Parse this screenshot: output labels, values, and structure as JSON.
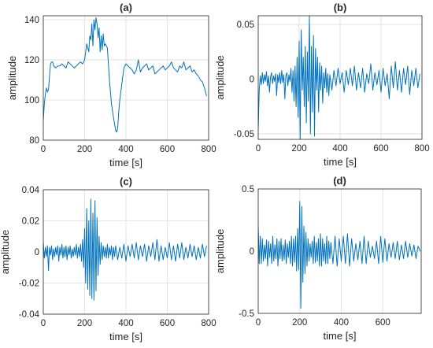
{
  "colors": {
    "series": "#0072bd",
    "axis": "#262626",
    "grid": "#dcdcdc"
  },
  "chart_data": [
    {
      "id": "a",
      "type": "line",
      "title": "(a)",
      "xlabel": "time [s]",
      "ylabel": "amplitude",
      "xlim": [
        0,
        800
      ],
      "ylim": [
        80,
        142
      ],
      "xticks": [
        "0",
        "200",
        "400",
        "600",
        "800"
      ],
      "yticks": [
        "80",
        "100",
        "120",
        "140"
      ],
      "grid": true,
      "series": [
        {
          "x": [
            0,
            5,
            10,
            15,
            20,
            25,
            30,
            35,
            40,
            45,
            50,
            60,
            70,
            80,
            90,
            100,
            110,
            120,
            130,
            140,
            150,
            160,
            170,
            180,
            190,
            200,
            210,
            220,
            225,
            230,
            235,
            240,
            245,
            250,
            255,
            260,
            265,
            270,
            275,
            280,
            285,
            290,
            295,
            300,
            310,
            320,
            330,
            340,
            345,
            350,
            355,
            360,
            365,
            370,
            380,
            390,
            400,
            410,
            420,
            430,
            440,
            450,
            460,
            470,
            480,
            490,
            500,
            510,
            520,
            530,
            540,
            550,
            560,
            570,
            580,
            590,
            600,
            610,
            620,
            630,
            640,
            650,
            660,
            670,
            680,
            690,
            700,
            710,
            720,
            730,
            740,
            750,
            760,
            770,
            780,
            790
          ],
          "y": [
            90,
            98,
            103,
            106,
            104,
            105,
            112,
            118,
            119,
            119,
            117,
            116,
            117,
            117,
            118,
            117,
            116,
            119,
            118,
            117,
            116,
            117,
            118,
            119,
            118,
            120,
            128,
            124,
            132,
            130,
            138,
            127,
            140,
            135,
            141,
            138,
            131,
            136,
            124,
            132,
            125,
            133,
            127,
            128,
            126,
            110,
            98,
            91,
            88,
            85,
            84,
            86,
            94,
            100,
            108,
            116,
            118,
            117,
            116,
            115,
            113,
            115,
            120,
            114,
            116,
            117,
            118,
            115,
            116,
            117,
            113,
            114,
            115,
            116,
            117,
            115,
            116,
            117,
            119,
            116,
            115,
            114,
            117,
            116,
            119,
            115,
            116,
            117,
            114,
            115,
            113,
            112,
            110,
            109,
            106,
            102
          ]
        }
      ]
    },
    {
      "id": "b",
      "type": "line",
      "title": "(b)",
      "xlabel": "time [s]",
      "ylabel": "amplitude",
      "xlim": [
        0,
        800
      ],
      "ylim": [
        -0.055,
        0.058
      ],
      "xticks": [
        "0",
        "200",
        "400",
        "600",
        "800"
      ],
      "yticks": [
        "-0.05",
        "0",
        "0.05"
      ],
      "grid": true,
      "series": [
        {
          "x": [
            0,
            5,
            10,
            15,
            20,
            25,
            30,
            35,
            40,
            45,
            50,
            55,
            60,
            65,
            70,
            75,
            80,
            85,
            90,
            95,
            100,
            105,
            110,
            115,
            120,
            125,
            130,
            135,
            140,
            145,
            150,
            155,
            160,
            165,
            170,
            175,
            180,
            185,
            190,
            195,
            200,
            205,
            210,
            215,
            220,
            225,
            230,
            235,
            240,
            245,
            250,
            255,
            260,
            265,
            270,
            275,
            280,
            285,
            290,
            295,
            300,
            305,
            310,
            315,
            320,
            325,
            330,
            335,
            340,
            345,
            350,
            360,
            370,
            380,
            390,
            400,
            410,
            420,
            430,
            440,
            450,
            460,
            470,
            480,
            490,
            500,
            510,
            520,
            530,
            540,
            550,
            560,
            570,
            580,
            590,
            600,
            610,
            620,
            630,
            640,
            650,
            660,
            670,
            680,
            690,
            700,
            710,
            720,
            730,
            740,
            750,
            760,
            770,
            780,
            790
          ],
          "y": [
            -0.045,
            -0.01,
            0.003,
            -0.005,
            0.006,
            -0.004,
            0.004,
            -0.002,
            0.007,
            -0.006,
            0.003,
            -0.012,
            0.002,
            0.006,
            -0.004,
            0.003,
            -0.002,
            0.005,
            -0.015,
            0.004,
            -0.003,
            0.006,
            -0.004,
            0.008,
            -0.003,
            0.004,
            -0.018,
            0.003,
            0.006,
            -0.006,
            0.004,
            -0.002,
            0.01,
            -0.012,
            0.008,
            -0.02,
            0.012,
            -0.025,
            0.02,
            -0.035,
            0.035,
            -0.055,
            0.045,
            -0.01,
            0.02,
            -0.025,
            0.03,
            -0.04,
            0.025,
            -0.02,
            0.058,
            -0.05,
            0.03,
            -0.03,
            0.04,
            -0.052,
            0.028,
            -0.01,
            0.02,
            -0.03,
            0.015,
            -0.01,
            0.012,
            -0.022,
            0.006,
            -0.008,
            0.01,
            -0.012,
            0.005,
            -0.015,
            0.004,
            -0.01,
            0.008,
            -0.006,
            0.01,
            -0.004,
            0.006,
            -0.012,
            0.008,
            -0.005,
            0.01,
            -0.006,
            0.012,
            -0.01,
            0.006,
            -0.008,
            0.01,
            -0.012,
            0.005,
            -0.004,
            0.014,
            -0.01,
            0.006,
            -0.005,
            0.008,
            -0.012,
            0.01,
            -0.006,
            0.005,
            -0.018,
            0.012,
            -0.008,
            0.016,
            -0.01,
            0.008,
            -0.012,
            0.01,
            -0.005,
            0.012,
            -0.014,
            0.008,
            -0.006,
            0.01,
            -0.008,
            0.005
          ]
        }
      ]
    },
    {
      "id": "c",
      "type": "line",
      "title": "(c)",
      "xlabel": "time [s]",
      "ylabel": "amplitude",
      "xlim": [
        0,
        800
      ],
      "ylim": [
        -0.04,
        0.04
      ],
      "xticks": [
        "0",
        "200",
        "400",
        "600",
        "800"
      ],
      "yticks": [
        "-0.04",
        "-0.02",
        "0",
        "0.02",
        "0.04"
      ],
      "grid": true,
      "series": [
        {
          "x": [
            0,
            5,
            10,
            15,
            20,
            25,
            30,
            35,
            40,
            45,
            50,
            55,
            60,
            65,
            70,
            75,
            80,
            85,
            90,
            95,
            100,
            105,
            110,
            115,
            120,
            125,
            130,
            135,
            140,
            145,
            150,
            155,
            160,
            165,
            170,
            175,
            180,
            185,
            190,
            195,
            200,
            205,
            210,
            215,
            220,
            225,
            230,
            235,
            240,
            245,
            250,
            255,
            260,
            265,
            270,
            275,
            280,
            285,
            290,
            295,
            300,
            305,
            310,
            315,
            320,
            325,
            330,
            335,
            340,
            345,
            350,
            360,
            370,
            380,
            390,
            400,
            410,
            420,
            430,
            440,
            450,
            460,
            470,
            480,
            490,
            500,
            510,
            520,
            530,
            540,
            550,
            560,
            570,
            580,
            590,
            600,
            610,
            620,
            630,
            640,
            650,
            660,
            670,
            680,
            690,
            700,
            710,
            720,
            730,
            740,
            750,
            760,
            770,
            780,
            790
          ],
          "y": [
            0.006,
            -0.004,
            0.003,
            -0.003,
            0.004,
            -0.012,
            0.003,
            -0.002,
            0.004,
            -0.005,
            0.002,
            -0.003,
            0.003,
            -0.002,
            0.004,
            -0.006,
            0.003,
            -0.002,
            0.005,
            -0.004,
            0.003,
            -0.003,
            0.004,
            -0.005,
            0.003,
            -0.002,
            0.004,
            -0.004,
            0.002,
            -0.003,
            0.003,
            -0.002,
            0.005,
            -0.004,
            0.003,
            -0.003,
            0.005,
            -0.006,
            0.008,
            -0.01,
            0.015,
            -0.02,
            0.028,
            -0.024,
            0.02,
            -0.028,
            0.034,
            -0.03,
            0.025,
            -0.031,
            0.033,
            -0.025,
            0.022,
            -0.015,
            0.01,
            -0.008,
            0.006,
            -0.005,
            0.004,
            -0.003,
            0.003,
            -0.004,
            0.005,
            -0.004,
            0.003,
            -0.002,
            0.004,
            -0.005,
            0.003,
            -0.003,
            0.004,
            -0.005,
            0.003,
            -0.004,
            0.005,
            -0.006,
            0.004,
            -0.003,
            0.005,
            -0.004,
            0.006,
            -0.005,
            0.004,
            -0.003,
            0.005,
            -0.006,
            0.004,
            -0.003,
            0.006,
            -0.005,
            0.008,
            -0.006,
            0.004,
            -0.005,
            0.003,
            -0.004,
            0.006,
            -0.005,
            0.004,
            -0.006,
            0.005,
            -0.004,
            0.006,
            -0.005,
            0.003,
            -0.004,
            0.005,
            -0.003,
            0.004,
            -0.005,
            0.003,
            -0.004,
            0.005,
            -0.003,
            0.004
          ]
        }
      ]
    },
    {
      "id": "d",
      "type": "line",
      "title": "(d)",
      "xlabel": "time [s]",
      "ylabel": "amplitude",
      "xlim": [
        0,
        785
      ],
      "ylim": [
        -0.5,
        0.5
      ],
      "xticks": [
        "0",
        "200",
        "400",
        "600"
      ],
      "yticks": [
        "-0.5",
        "0",
        "0.5"
      ],
      "grid": true,
      "series": [
        {
          "x": [
            0,
            5,
            10,
            15,
            20,
            25,
            30,
            35,
            40,
            45,
            50,
            55,
            60,
            65,
            70,
            75,
            80,
            85,
            90,
            95,
            100,
            105,
            110,
            115,
            120,
            125,
            130,
            135,
            140,
            145,
            150,
            155,
            160,
            165,
            170,
            175,
            180,
            185,
            190,
            195,
            200,
            205,
            210,
            215,
            220,
            225,
            230,
            235,
            240,
            245,
            250,
            255,
            260,
            265,
            270,
            275,
            280,
            285,
            290,
            295,
            300,
            305,
            310,
            315,
            320,
            325,
            330,
            335,
            340,
            345,
            350,
            360,
            370,
            380,
            390,
            400,
            410,
            420,
            430,
            440,
            450,
            460,
            470,
            480,
            490,
            500,
            510,
            520,
            530,
            540,
            550,
            560,
            570,
            580,
            590,
            600,
            610,
            620,
            630,
            640,
            650,
            660,
            670,
            680,
            690,
            700,
            710,
            720,
            730,
            740,
            750,
            760,
            770,
            780
          ],
          "y": [
            0.2,
            -0.1,
            0.12,
            -0.1,
            0.1,
            -0.08,
            0.05,
            -0.06,
            0.09,
            -0.12,
            0.08,
            -0.05,
            0.06,
            -0.1,
            0.12,
            -0.08,
            0.05,
            -0.06,
            0.1,
            -0.12,
            0.08,
            -0.06,
            0.1,
            -0.08,
            0.05,
            -0.07,
            0.09,
            -0.1,
            0.06,
            -0.05,
            0.08,
            -0.1,
            0.12,
            -0.12,
            0.1,
            -0.09,
            0.12,
            -0.16,
            0.18,
            -0.15,
            0.4,
            -0.46,
            0.36,
            -0.25,
            0.2,
            -0.18,
            0.15,
            -0.12,
            0.1,
            -0.08,
            0.06,
            -0.05,
            0.08,
            -0.1,
            0.12,
            -0.09,
            0.07,
            -0.08,
            0.1,
            -0.12,
            0.14,
            -0.12,
            0.1,
            -0.08,
            0.06,
            -0.1,
            0.12,
            -0.1,
            0.08,
            -0.06,
            0.07,
            -0.1,
            0.12,
            -0.12,
            0.1,
            -0.08,
            0.12,
            -0.1,
            0.14,
            -0.12,
            0.1,
            -0.08,
            0.06,
            -0.07,
            0.08,
            -0.1,
            0.12,
            -0.1,
            0.08,
            -0.05,
            0.04,
            -0.06,
            0.08,
            -0.1,
            0.12,
            -0.09,
            0.1,
            -0.08,
            0.06,
            -0.05,
            0.07,
            -0.06,
            0.08,
            -0.07,
            0.05,
            -0.06,
            0.08,
            -0.05,
            0.06,
            -0.04,
            0.05,
            -0.06,
            0.04,
            0.0
          ]
        }
      ]
    }
  ]
}
